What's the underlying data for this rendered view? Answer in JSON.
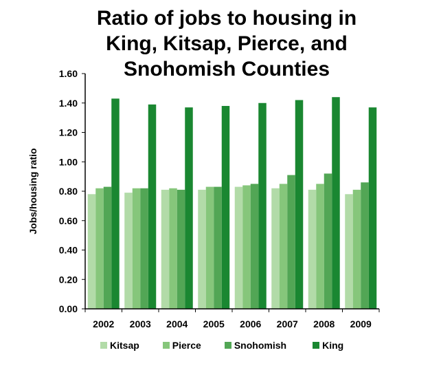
{
  "chart_data": {
    "type": "bar",
    "title": "Ratio of jobs to housing in King, Kitsap, Pierce, and Snohomish Counties",
    "title_lines": [
      "Ratio of jobs to housing in",
      "King, Kitsap, Pierce, and",
      "Snohomish Counties"
    ],
    "xlabel": "",
    "ylabel": "Jobs/housing ratio",
    "ylim": [
      0,
      1.6
    ],
    "yticks": [
      "0.00",
      "0.20",
      "0.40",
      "0.60",
      "0.80",
      "1.00",
      "1.20",
      "1.40",
      "1.60"
    ],
    "grid": false,
    "legend_position": "bottom",
    "categories": [
      "2002",
      "2003",
      "2004",
      "2005",
      "2006",
      "2007",
      "2008",
      "2009"
    ],
    "series": [
      {
        "name": "Kitsap",
        "color": "#b2dba8",
        "values": [
          0.78,
          0.79,
          0.81,
          0.81,
          0.83,
          0.82,
          0.81,
          0.78
        ]
      },
      {
        "name": "Pierce",
        "color": "#86c67b",
        "values": [
          0.82,
          0.82,
          0.82,
          0.83,
          0.84,
          0.85,
          0.85,
          0.81
        ]
      },
      {
        "name": "Snohomish",
        "color": "#52a655",
        "values": [
          0.83,
          0.82,
          0.81,
          0.83,
          0.85,
          0.91,
          0.92,
          0.86
        ]
      },
      {
        "name": "King",
        "color": "#1a8731",
        "values": [
          1.43,
          1.39,
          1.37,
          1.38,
          1.4,
          1.42,
          1.44,
          1.37
        ]
      }
    ]
  }
}
